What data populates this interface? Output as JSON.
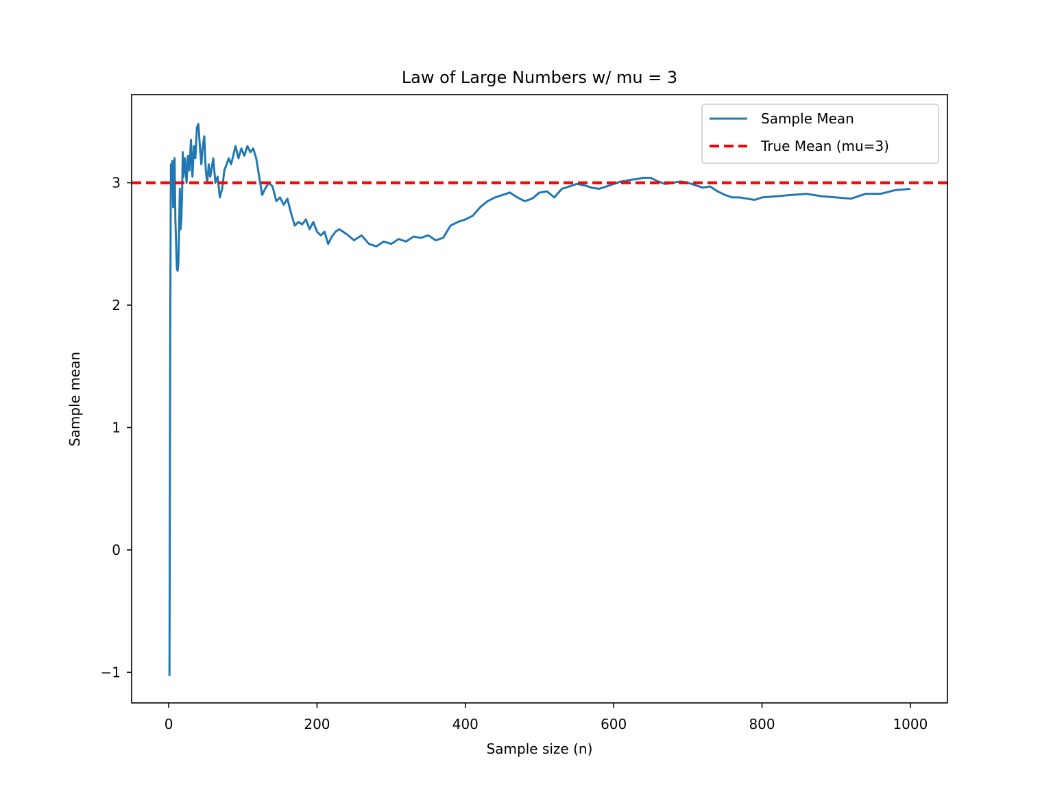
{
  "chart_data": {
    "type": "line",
    "title": "Law of Large Numbers w/ mu = 3",
    "xlabel": "Sample size (n)",
    "ylabel": "Sample mean",
    "xlim": [
      -50,
      1050
    ],
    "ylim": [
      -1.25,
      3.72
    ],
    "x_ticks": [
      0,
      200,
      400,
      600,
      800,
      1000
    ],
    "y_ticks": [
      -1,
      0,
      1,
      2,
      3
    ],
    "x_tick_labels": [
      "0",
      "200",
      "400",
      "600",
      "800",
      "1000"
    ],
    "y_tick_labels": [
      "−1",
      "0",
      "1",
      "2",
      "3"
    ],
    "grid": false,
    "legend_position": "top-right",
    "colors": {
      "sample_mean": "#1f77b4",
      "true_mean": "#ff0000"
    },
    "series": [
      {
        "name": "Sample Mean",
        "style": "solid",
        "x": [
          1,
          2,
          3,
          4,
          5,
          6,
          7,
          8,
          9,
          10,
          11,
          12,
          13,
          14,
          15,
          16,
          17,
          18,
          19,
          20,
          22,
          24,
          26,
          28,
          30,
          32,
          34,
          36,
          38,
          40,
          42,
          44,
          46,
          48,
          50,
          52,
          54,
          56,
          58,
          60,
          63,
          66,
          69,
          72,
          75,
          78,
          81,
          84,
          87,
          90,
          94,
          98,
          102,
          106,
          110,
          114,
          118,
          122,
          126,
          130,
          135,
          140,
          145,
          150,
          155,
          160,
          165,
          170,
          175,
          180,
          185,
          190,
          195,
          200,
          205,
          210,
          215,
          220,
          225,
          230,
          240,
          250,
          260,
          270,
          280,
          290,
          300,
          310,
          320,
          330,
          340,
          350,
          360,
          370,
          380,
          390,
          400,
          410,
          420,
          430,
          440,
          450,
          460,
          470,
          480,
          490,
          500,
          510,
          520,
          530,
          540,
          550,
          560,
          570,
          580,
          590,
          600,
          610,
          620,
          630,
          640,
          650,
          660,
          670,
          680,
          690,
          700,
          710,
          720,
          730,
          740,
          750,
          760,
          770,
          780,
          790,
          800,
          820,
          840,
          860,
          880,
          900,
          920,
          940,
          960,
          980,
          1000
        ],
        "y": [
          -1.03,
          1.8,
          3.15,
          3.05,
          3.18,
          2.8,
          2.9,
          3.2,
          2.7,
          2.5,
          2.3,
          2.28,
          2.35,
          2.6,
          2.95,
          2.62,
          2.7,
          2.9,
          3.25,
          3.05,
          3.2,
          3.0,
          3.22,
          3.1,
          3.35,
          3.05,
          3.3,
          3.2,
          3.45,
          3.48,
          3.3,
          3.15,
          3.3,
          3.38,
          3.1,
          3.0,
          3.15,
          3.05,
          3.12,
          3.2,
          3.0,
          3.05,
          2.88,
          2.95,
          3.1,
          3.15,
          3.2,
          3.15,
          3.22,
          3.3,
          3.2,
          3.28,
          3.22,
          3.3,
          3.25,
          3.28,
          3.2,
          3.05,
          2.9,
          2.95,
          3.0,
          2.97,
          2.85,
          2.88,
          2.82,
          2.87,
          2.75,
          2.65,
          2.68,
          2.66,
          2.7,
          2.62,
          2.68,
          2.6,
          2.57,
          2.6,
          2.5,
          2.56,
          2.6,
          2.62,
          2.58,
          2.53,
          2.57,
          2.5,
          2.48,
          2.52,
          2.5,
          2.54,
          2.52,
          2.56,
          2.55,
          2.57,
          2.53,
          2.55,
          2.65,
          2.68,
          2.7,
          2.73,
          2.8,
          2.85,
          2.88,
          2.9,
          2.92,
          2.88,
          2.85,
          2.87,
          2.92,
          2.93,
          2.88,
          2.95,
          2.97,
          2.99,
          2.98,
          2.96,
          2.95,
          2.97,
          2.99,
          3.01,
          3.02,
          3.03,
          3.04,
          3.04,
          3.01,
          2.99,
          3.0,
          3.01,
          3.0,
          2.98,
          2.96,
          2.97,
          2.93,
          2.9,
          2.88,
          2.88,
          2.87,
          2.86,
          2.88,
          2.89,
          2.9,
          2.91,
          2.89,
          2.88,
          2.87,
          2.91,
          2.91,
          2.94,
          2.95
        ]
      },
      {
        "name": "True Mean (mu=3)",
        "style": "dashed",
        "y": 3
      }
    ]
  }
}
